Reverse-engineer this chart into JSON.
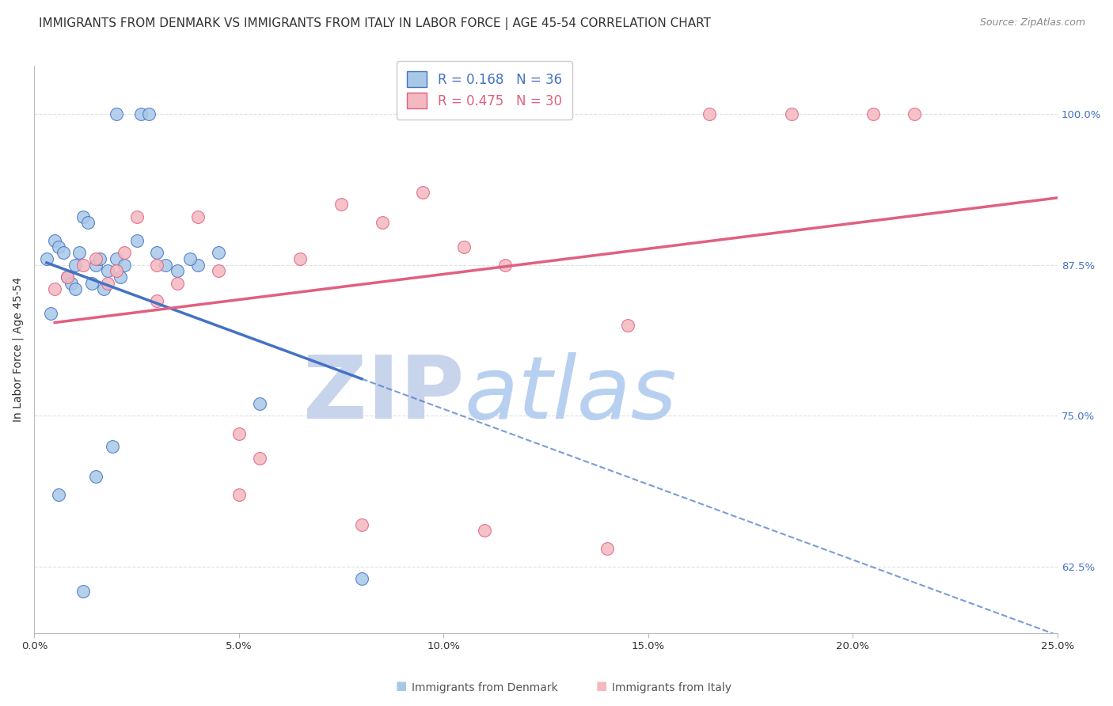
{
  "title": "IMMIGRANTS FROM DENMARK VS IMMIGRANTS FROM ITALY IN LABOR FORCE | AGE 45-54 CORRELATION CHART",
  "source": "Source: ZipAtlas.com",
  "ylabel": "In Labor Force | Age 45-54",
  "x_tick_labels": [
    "0.0%",
    "5.0%",
    "10.0%",
    "15.0%",
    "20.0%",
    "25.0%"
  ],
  "x_tick_values": [
    0.0,
    5.0,
    10.0,
    15.0,
    20.0,
    25.0
  ],
  "y_tick_labels": [
    "62.5%",
    "75.0%",
    "87.5%",
    "100.0%"
  ],
  "y_tick_values": [
    62.5,
    75.0,
    87.5,
    100.0
  ],
  "xlim": [
    0.0,
    25.0
  ],
  "ylim": [
    57.0,
    104.0
  ],
  "denmark_R": 0.168,
  "denmark_N": 36,
  "italy_R": 0.475,
  "italy_N": 30,
  "denmark_color": "#a8c8e8",
  "italy_color": "#f4b8c0",
  "denmark_line_color": "#4472c4",
  "italy_line_color": "#e06080",
  "watermark_zip_color": "#c8d8f0",
  "watermark_atlas_color": "#a8c8e8",
  "grid_color": "#dddddd",
  "background_color": "#ffffff",
  "title_fontsize": 11,
  "axis_label_fontsize": 10,
  "tick_fontsize": 9.5,
  "legend_fontsize": 12,
  "source_fontsize": 9,
  "denmark_scatter_x": [
    0.3,
    0.5,
    0.6,
    0.7,
    0.8,
    0.9,
    1.0,
    1.0,
    1.1,
    1.2,
    1.3,
    1.4,
    1.5,
    1.6,
    1.7,
    1.8,
    2.0,
    2.1,
    2.2,
    2.5,
    2.6,
    2.8,
    3.0,
    3.2,
    3.5,
    4.0,
    1.5,
    1.9,
    0.4,
    0.6,
    1.2,
    2.0,
    3.8,
    8.0,
    4.5,
    5.5
  ],
  "denmark_scatter_y": [
    88.0,
    89.5,
    89.0,
    88.5,
    86.5,
    86.0,
    87.5,
    85.5,
    88.5,
    91.5,
    91.0,
    86.0,
    87.5,
    88.0,
    85.5,
    87.0,
    88.0,
    86.5,
    87.5,
    89.5,
    100.0,
    100.0,
    88.5,
    87.5,
    87.0,
    87.5,
    70.0,
    72.5,
    83.5,
    68.5,
    60.5,
    100.0,
    88.0,
    61.5,
    88.5,
    76.0
  ],
  "italy_scatter_x": [
    0.8,
    1.2,
    1.5,
    2.0,
    2.2,
    2.5,
    3.0,
    3.5,
    4.0,
    4.5,
    5.0,
    5.5,
    6.5,
    7.5,
    8.5,
    9.5,
    10.5,
    11.5,
    14.5,
    16.5,
    18.5,
    20.5,
    0.5,
    1.8,
    3.0,
    5.0,
    8.0,
    11.0,
    14.0,
    21.5
  ],
  "italy_scatter_y": [
    86.5,
    87.5,
    88.0,
    87.0,
    88.5,
    91.5,
    87.5,
    86.0,
    91.5,
    87.0,
    73.5,
    71.5,
    88.0,
    92.5,
    91.0,
    93.5,
    89.0,
    87.5,
    82.5,
    100.0,
    100.0,
    100.0,
    85.5,
    86.0,
    84.5,
    68.5,
    66.0,
    65.5,
    64.0,
    100.0
  ]
}
